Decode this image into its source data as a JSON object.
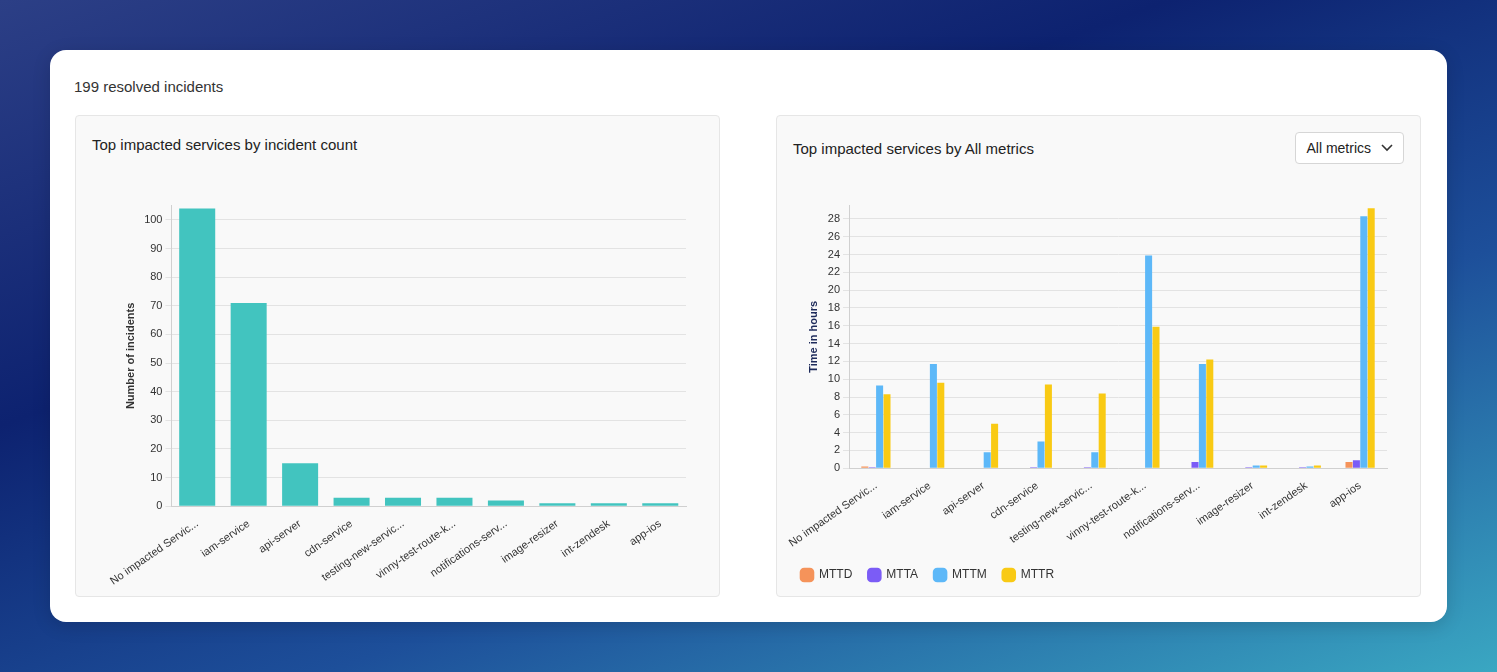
{
  "page": {
    "heading": "199 resolved incidents",
    "selector": "All metrics"
  },
  "chart_data": [
    {
      "type": "bar",
      "title": "Top impacted services by incident count",
      "ylabel": "Number of incidents",
      "categories": [
        "No impacted Servic...",
        "iam-service",
        "api-server",
        "cdn-service",
        "testing-new-servic...",
        "vinny-test-route-k...",
        "notifications-serv...",
        "image-resizer",
        "int-zendesk",
        "app-ios"
      ],
      "values": [
        104,
        71,
        15,
        3,
        3,
        3,
        2,
        1,
        1,
        1
      ],
      "color": "#42c4bf",
      "ylim": [
        0,
        105
      ],
      "yticks": [
        0,
        10,
        20,
        30,
        40,
        50,
        60,
        70,
        80,
        90,
        100
      ],
      "grid": true
    },
    {
      "type": "bar",
      "title": "Top impacted services by All metrics",
      "ylabel": "Time in hours",
      "categories": [
        "No impacted Servic...",
        "iam-service",
        "api-server",
        "cdn-service",
        "testing-new-servic...",
        "vinny-test-route-k...",
        "notifications-serv...",
        "image-resizer",
        "int-zendesk",
        "app-ios"
      ],
      "series": [
        {
          "name": "MTTD",
          "color": "#f5935a",
          "values": [
            0.2,
            0,
            0,
            0,
            0,
            0,
            0,
            0,
            0,
            0.7
          ]
        },
        {
          "name": "MTTA",
          "color": "#7b5cf6",
          "values": [
            0.1,
            0,
            0,
            0.1,
            0.1,
            0,
            0.7,
            0.1,
            0.1,
            0.9
          ]
        },
        {
          "name": "MTTM",
          "color": "#5db8f8",
          "values": [
            9.3,
            11.7,
            1.8,
            3.0,
            1.8,
            23.9,
            11.7,
            0.3,
            0.2,
            28.3
          ]
        },
        {
          "name": "MTTR",
          "color": "#f9ca14",
          "values": [
            8.3,
            9.6,
            5.0,
            9.4,
            8.4,
            15.9,
            12.2,
            0.3,
            0.3,
            29.2
          ]
        }
      ],
      "ylim": [
        0,
        29.5
      ],
      "yticks": [
        0,
        2,
        4,
        6,
        8,
        10,
        12,
        14,
        16,
        18,
        20,
        22,
        24,
        26,
        28
      ],
      "grid": true,
      "legend": "bottom"
    }
  ]
}
